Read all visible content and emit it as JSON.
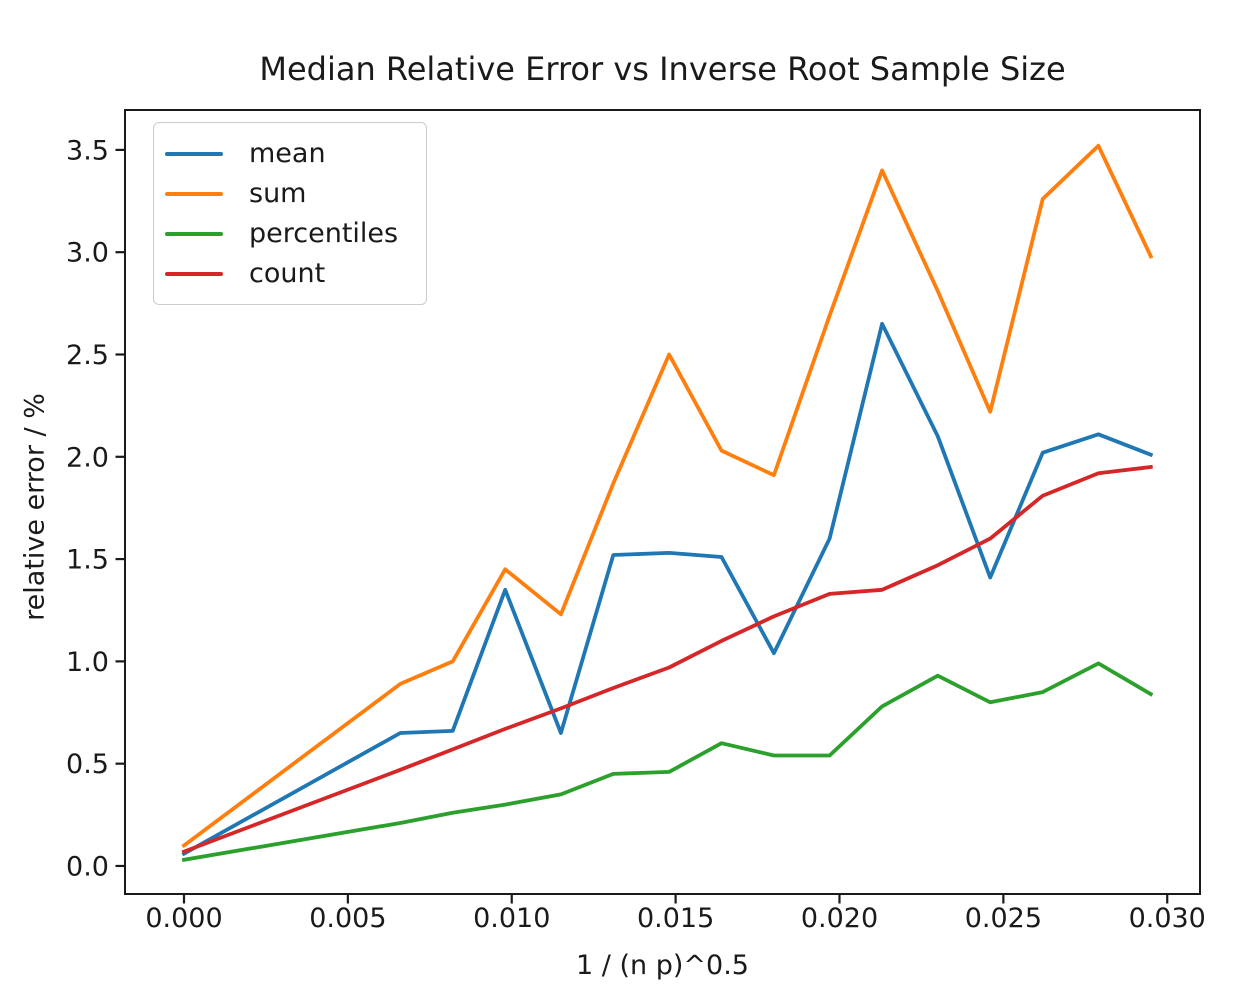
{
  "chart_data": {
    "type": "line",
    "title": "Median Relative Error vs Inverse Root Sample Size",
    "xlabel": "1 / (n p)^0.5",
    "ylabel": "relative error / %",
    "grid": false,
    "legend_position": "upper left",
    "xlim": [
      -0.0018,
      0.031
    ],
    "ylim": [
      -0.137,
      3.695
    ],
    "xticks": [
      0.0,
      0.005,
      0.01,
      0.015,
      0.02,
      0.025,
      0.03
    ],
    "xtick_labels": [
      "0.000",
      "0.005",
      "0.010",
      "0.015",
      "0.020",
      "0.025",
      "0.030"
    ],
    "yticks": [
      0.0,
      0.5,
      1.0,
      1.5,
      2.0,
      2.5,
      3.0,
      3.5
    ],
    "ytick_labels": [
      "0.0",
      "0.5",
      "1.0",
      "1.5",
      "2.0",
      "2.5",
      "3.0",
      "3.5"
    ],
    "x": [
      0.0,
      0.0066,
      0.0082,
      0.0098,
      0.0115,
      0.0131,
      0.0148,
      0.0164,
      0.018,
      0.0197,
      0.0213,
      0.023,
      0.0246,
      0.0262,
      0.0279,
      0.0295
    ],
    "series": [
      {
        "name": "mean",
        "color": "#1f77b4",
        "values": [
          0.06,
          0.65,
          0.66,
          1.35,
          0.65,
          1.52,
          1.53,
          1.51,
          1.04,
          1.6,
          2.65,
          2.1,
          1.41,
          2.02,
          2.11,
          2.01
        ]
      },
      {
        "name": "sum",
        "color": "#ff7f0e",
        "values": [
          0.1,
          0.89,
          1.0,
          1.45,
          1.23,
          1.87,
          2.5,
          2.03,
          1.91,
          2.69,
          3.4,
          2.81,
          2.22,
          3.26,
          3.52,
          2.98
        ]
      },
      {
        "name": "percentiles",
        "color": "#2ca02c",
        "values": [
          0.03,
          0.21,
          0.26,
          0.3,
          0.35,
          0.45,
          0.46,
          0.6,
          0.54,
          0.54,
          0.78,
          0.93,
          0.8,
          0.85,
          0.99,
          0.84
        ]
      },
      {
        "name": "count",
        "color": "#d62728",
        "values": [
          0.07,
          0.47,
          0.57,
          0.67,
          0.77,
          0.87,
          0.97,
          1.1,
          1.22,
          1.33,
          1.35,
          1.47,
          1.6,
          1.81,
          1.92,
          1.95
        ]
      }
    ]
  }
}
